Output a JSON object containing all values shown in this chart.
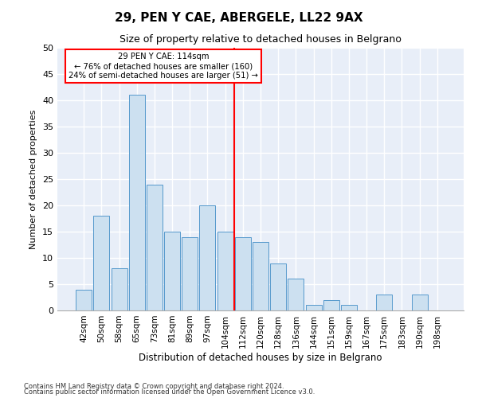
{
  "title": "29, PEN Y CAE, ABERGELE, LL22 9AX",
  "subtitle": "Size of property relative to detached houses in Belgrano",
  "xlabel_bottom": "Distribution of detached houses by size in Belgrano",
  "ylabel": "Number of detached properties",
  "footer1": "Contains HM Land Registry data © Crown copyright and database right 2024.",
  "footer2": "Contains public sector information licensed under the Open Government Licence v3.0.",
  "bar_color": "#cce0f0",
  "bar_edge_color": "#5599cc",
  "background_color": "#e8eef8",
  "grid_color": "#ffffff",
  "fig_background": "#ffffff",
  "categories": [
    "42sqm",
    "50sqm",
    "58sqm",
    "65sqm",
    "73sqm",
    "81sqm",
    "89sqm",
    "97sqm",
    "104sqm",
    "112sqm",
    "120sqm",
    "128sqm",
    "136sqm",
    "144sqm",
    "151sqm",
    "159sqm",
    "167sqm",
    "175sqm",
    "183sqm",
    "190sqm",
    "198sqm"
  ],
  "values": [
    4,
    18,
    8,
    41,
    24,
    15,
    14,
    20,
    15,
    14,
    13,
    9,
    6,
    1,
    2,
    1,
    0,
    3,
    0,
    3,
    0
  ],
  "annotation_line1": "29 PEN Y CAE: 114sqm",
  "annotation_line2": "← 76% of detached houses are smaller (160)",
  "annotation_line3": "24% of semi-detached houses are larger (51) →",
  "vline_x_index": 9,
  "ylim": [
    0,
    50
  ],
  "yticks": [
    0,
    5,
    10,
    15,
    20,
    25,
    30,
    35,
    40,
    45,
    50
  ]
}
